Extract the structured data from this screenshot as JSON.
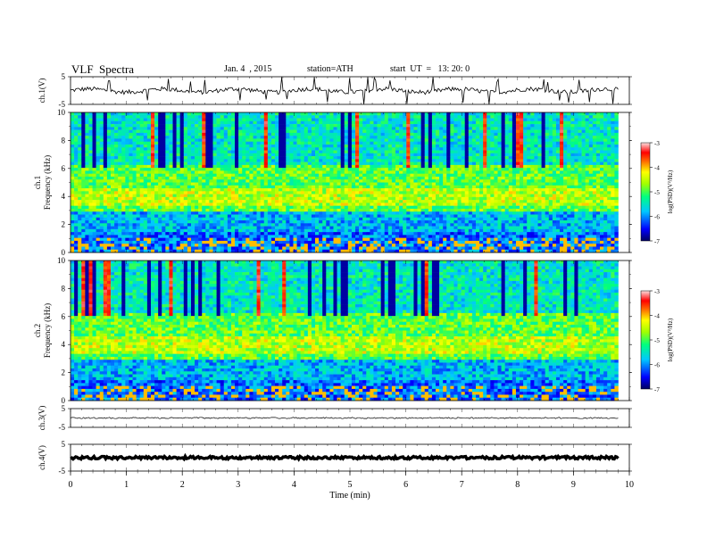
{
  "header": {
    "title": "VLF  Spectra",
    "date": "Jan. 4  , 2015",
    "station": "station=ATH",
    "start": "start  UT  =   13: 20: 0"
  },
  "chart_data": [
    {
      "type": "line",
      "name": "ch1-waveform",
      "ylabel": "ch.1(V)",
      "ylim": [
        -5,
        5
      ],
      "yticks": [
        "5",
        "-5"
      ],
      "x_range": [
        0,
        9.8
      ],
      "baseline": 0,
      "description_level": "noisy waveform with frequent spikes"
    },
    {
      "type": "heatmap",
      "name": "ch1-spectrogram",
      "ylabel": "ch.1\nFrequency  (kHz)",
      "ylim": [
        0,
        10
      ],
      "yticks": [
        "0",
        "2",
        "4",
        "6",
        "8",
        "10"
      ],
      "x_range": [
        0,
        9.8
      ],
      "colorbar": {
        "label": "log(PSD)(V²/Hz)",
        "range": [
          -7,
          -3
        ],
        "ticks": [
          "-3",
          "-4",
          "-5",
          "-6",
          "-7"
        ]
      }
    },
    {
      "type": "heatmap",
      "name": "ch2-spectrogram",
      "ylabel": "ch.2\nFrequency  (kHz)",
      "ylim": [
        0,
        10
      ],
      "yticks": [
        "0",
        "2",
        "4",
        "6",
        "8",
        "10"
      ],
      "x_range": [
        0,
        9.8
      ],
      "colorbar": {
        "label": "log(PSD)(V²/Hz)",
        "range": [
          -7,
          -3
        ],
        "ticks": [
          "-3",
          "-4",
          "-5",
          "-6",
          "-7"
        ]
      }
    },
    {
      "type": "line",
      "name": "ch3-waveform",
      "ylabel": "ch.3(V)",
      "ylim": [
        -5,
        5
      ],
      "yticks": [
        "5",
        "-5"
      ],
      "x_range": [
        0,
        9.8
      ],
      "baseline": 0
    },
    {
      "type": "line",
      "name": "ch4-waveform",
      "ylabel": "ch.4(V)",
      "ylim": [
        -5,
        5
      ],
      "yticks": [
        "5",
        "-5"
      ],
      "x_range": [
        0,
        9.8
      ],
      "baseline": 0
    }
  ],
  "x_axis": {
    "label": "Time  (min)",
    "range": [
      0,
      10
    ],
    "ticks": [
      "0",
      "1",
      "2",
      "3",
      "4",
      "5",
      "6",
      "7",
      "8",
      "9",
      "10"
    ]
  }
}
